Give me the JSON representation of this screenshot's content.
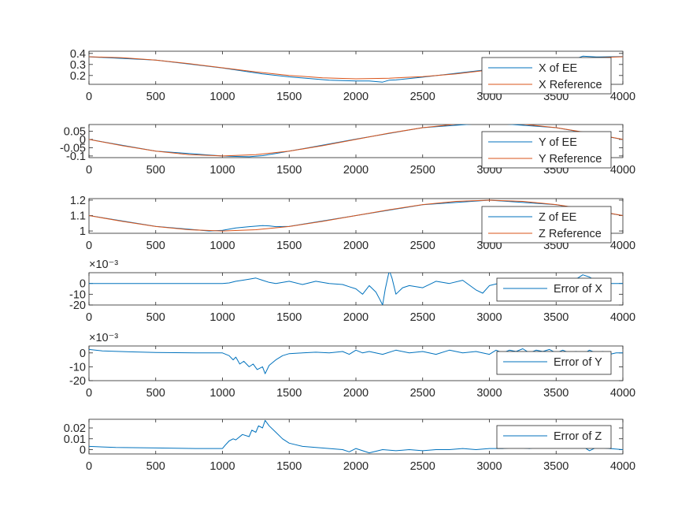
{
  "colors": {
    "ee": "#0072BD",
    "reference": "#D95319"
  },
  "chart_data": [
    {
      "type": "line",
      "xlim": [
        0,
        4000
      ],
      "ylim": [
        0.12,
        0.42
      ],
      "xticks": [
        0,
        500,
        1000,
        1500,
        2000,
        2500,
        3000,
        3500,
        4000
      ],
      "xtick_labels": [
        "0",
        "500",
        "1000",
        "1500",
        "2000",
        "2500",
        "3000",
        "3500",
        "4000"
      ],
      "yticks": [
        0.2,
        0.3,
        0.4
      ],
      "ytick_labels": [
        "0.2",
        "0.3",
        "0.4"
      ],
      "exponent_label": "",
      "legend_position": "bottom-right",
      "series": [
        {
          "name": "X of EE",
          "color_key": "ee",
          "x": [
            0,
            500,
            1000,
            1100,
            1200,
            1300,
            1500,
            1800,
            2000,
            2100,
            2200,
            2250,
            2300,
            2500,
            3000,
            3500,
            3650,
            3700,
            3800,
            4000
          ],
          "y": [
            0.369,
            0.34,
            0.268,
            0.25,
            0.232,
            0.215,
            0.188,
            0.158,
            0.15,
            0.15,
            0.14,
            0.158,
            0.16,
            0.185,
            0.255,
            0.33,
            0.352,
            0.375,
            0.368,
            0.372
          ]
        },
        {
          "name": "X Reference",
          "color_key": "reference",
          "x": [
            0,
            250,
            500,
            750,
            1000,
            1250,
            1500,
            1750,
            2000,
            2250,
            2500,
            2750,
            3000,
            3250,
            3500,
            3750,
            4000
          ],
          "y": [
            0.37,
            0.361,
            0.339,
            0.307,
            0.27,
            0.233,
            0.201,
            0.179,
            0.17,
            0.176,
            0.19,
            0.214,
            0.25,
            0.29,
            0.33,
            0.359,
            0.37
          ]
        }
      ]
    },
    {
      "type": "line",
      "xlim": [
        0,
        4000
      ],
      "ylim": [
        -0.11,
        0.09
      ],
      "xticks": [
        0,
        500,
        1000,
        1500,
        2000,
        2500,
        3000,
        3500,
        4000
      ],
      "xtick_labels": [
        "0",
        "500",
        "1000",
        "1500",
        "2000",
        "2500",
        "3000",
        "3500",
        "4000"
      ],
      "yticks": [
        -0.1,
        -0.05,
        0,
        0.05
      ],
      "ytick_labels": [
        "-0.1",
        "-0.05",
        "0",
        "0.05"
      ],
      "exponent_label": "",
      "legend_position": "bottom-right",
      "series": [
        {
          "name": "Y of EE",
          "color_key": "ee",
          "x": [
            0,
            500,
            1000,
            1100,
            1200,
            1300,
            1400,
            1500,
            2000,
            2500,
            3000,
            3500,
            4000
          ],
          "y": [
            0.0,
            -0.071,
            -0.1,
            -0.103,
            -0.105,
            -0.098,
            -0.085,
            -0.071,
            0.002,
            0.071,
            0.1,
            0.071,
            0.0
          ]
        },
        {
          "name": "Y Reference",
          "color_key": "reference",
          "x": [
            0,
            250,
            500,
            750,
            1000,
            1250,
            1500,
            1750,
            2000,
            2250,
            2500,
            2750,
            3000,
            3250,
            3500,
            3750,
            4000
          ],
          "y": [
            0.0,
            -0.038,
            -0.071,
            -0.092,
            -0.1,
            -0.092,
            -0.071,
            -0.038,
            0.0,
            0.038,
            0.071,
            0.092,
            0.1,
            0.092,
            0.071,
            0.038,
            0.0
          ]
        }
      ]
    },
    {
      "type": "line",
      "xlim": [
        0,
        4000
      ],
      "ylim": [
        0.985,
        1.21
      ],
      "xticks": [
        0,
        500,
        1000,
        1500,
        2000,
        2500,
        3000,
        3500,
        4000
      ],
      "xtick_labels": [
        "0",
        "500",
        "1000",
        "1500",
        "2000",
        "2500",
        "3000",
        "3500",
        "4000"
      ],
      "yticks": [
        1.0,
        1.1,
        1.2
      ],
      "ytick_labels": [
        "1",
        "1.1",
        "1.2"
      ],
      "exponent_label": "",
      "legend_position": "bottom-right",
      "series": [
        {
          "name": "Z of EE",
          "color_key": "ee",
          "x": [
            0,
            500,
            900,
            1000,
            1100,
            1200,
            1300,
            1350,
            1400,
            1500,
            2000,
            2500,
            3000,
            3500,
            4000
          ],
          "y": [
            1.1,
            1.03,
            1.0,
            1.004,
            1.02,
            1.028,
            1.035,
            1.033,
            1.028,
            1.03,
            1.1,
            1.17,
            1.2,
            1.17,
            1.1
          ]
        },
        {
          "name": "Z Reference",
          "color_key": "reference",
          "x": [
            0,
            250,
            500,
            750,
            1000,
            1250,
            1500,
            1750,
            2000,
            2250,
            2500,
            2750,
            3000,
            3250,
            3500,
            3750,
            4000
          ],
          "y": [
            1.1,
            1.062,
            1.029,
            1.008,
            1.0,
            1.008,
            1.029,
            1.062,
            1.1,
            1.138,
            1.171,
            1.192,
            1.2,
            1.192,
            1.171,
            1.138,
            1.1
          ]
        }
      ]
    },
    {
      "type": "line",
      "xlim": [
        0,
        4000
      ],
      "ylim": [
        -20,
        10
      ],
      "xticks": [
        0,
        500,
        1000,
        1500,
        2000,
        2500,
        3000,
        3500,
        4000
      ],
      "xtick_labels": [
        "0",
        "500",
        "1000",
        "1500",
        "2000",
        "2500",
        "3000",
        "3500",
        "4000"
      ],
      "yticks": [
        -20,
        -10,
        0
      ],
      "ytick_labels": [
        "-20",
        "-10",
        "0"
      ],
      "exponent_label": "×10⁻³",
      "legend_position": "right",
      "series": [
        {
          "name": "Error of X",
          "color_key": "ee",
          "x": [
            0,
            1000,
            1050,
            1100,
            1150,
            1200,
            1250,
            1300,
            1350,
            1400,
            1500,
            1600,
            1700,
            1800,
            1900,
            1950,
            2000,
            2030,
            2050,
            2100,
            2150,
            2180,
            2200,
            2220,
            2250,
            2270,
            2300,
            2350,
            2400,
            2500,
            2600,
            2700,
            2800,
            2900,
            2950,
            3000,
            3100,
            3200,
            3300,
            3400,
            3500,
            3600,
            3650,
            3700,
            3750,
            3800,
            3900,
            4000
          ],
          "y": [
            0,
            0,
            0.5,
            2.0,
            3.0,
            4.0,
            5.0,
            3.0,
            1.0,
            0.0,
            2.0,
            -1.0,
            2.0,
            0.0,
            -1.0,
            -3.0,
            -5.0,
            -8.0,
            -10.0,
            -2.0,
            -8.0,
            -15.0,
            -20.0,
            -5.0,
            12.0,
            5.0,
            -10.0,
            -4.0,
            -2.0,
            -4.0,
            2.0,
            0.0,
            3.0,
            -6.0,
            -9.0,
            -2.0,
            1.0,
            0.0,
            2.0,
            -1.0,
            1.0,
            0.0,
            4.0,
            8.0,
            6.0,
            2.0,
            0.0,
            0.0
          ]
        }
      ]
    },
    {
      "type": "line",
      "xlim": [
        0,
        4000
      ],
      "ylim": [
        -20,
        5
      ],
      "xticks": [
        0,
        500,
        1000,
        1500,
        2000,
        2500,
        3000,
        3500,
        4000
      ],
      "xtick_labels": [
        "0",
        "500",
        "1000",
        "1500",
        "2000",
        "2500",
        "3000",
        "3500",
        "4000"
      ],
      "yticks": [
        -20,
        -10,
        0
      ],
      "ytick_labels": [
        "-20",
        "-10",
        "0"
      ],
      "exponent_label": "×10⁻³",
      "legend_position": "right",
      "series": [
        {
          "name": "Error of Y",
          "color_key": "ee",
          "x": [
            0,
            100,
            300,
            500,
            800,
            1000,
            1050,
            1080,
            1100,
            1130,
            1160,
            1200,
            1230,
            1260,
            1300,
            1320,
            1350,
            1400,
            1450,
            1500,
            1600,
            1700,
            1800,
            1900,
            1950,
            2000,
            2050,
            2100,
            2200,
            2300,
            2400,
            2500,
            2600,
            2700,
            2800,
            2900,
            3000,
            3050,
            3100,
            3150,
            3200,
            3250,
            3300,
            3350,
            3400,
            3450,
            3500,
            3550,
            3600,
            3650,
            3700,
            3750,
            3800,
            3850,
            3900,
            3950,
            4000
          ],
          "y": [
            2.5,
            1.5,
            0.8,
            0.3,
            0.0,
            0.0,
            -2.0,
            -5.0,
            -3.0,
            -8.0,
            -6.0,
            -10.0,
            -8.0,
            -12.0,
            -10.0,
            -15.0,
            -9.0,
            -5.0,
            -2.0,
            -0.5,
            0.0,
            0.5,
            0.0,
            1.0,
            -1.0,
            2.0,
            0.0,
            1.0,
            -1.0,
            2.0,
            0.0,
            1.0,
            -1.0,
            2.0,
            0.0,
            1.0,
            -1.0,
            2.0,
            0.0,
            2.0,
            1.0,
            3.0,
            0.0,
            2.0,
            1.0,
            2.5,
            0.0,
            2.0,
            0.0,
            1.0,
            -1.0,
            2.0,
            0.0,
            1.0,
            -1.0,
            0.0,
            0.0
          ]
        }
      ]
    },
    {
      "type": "line",
      "xlim": [
        0,
        4000
      ],
      "ylim": [
        -0.004,
        0.028
      ],
      "xticks": [
        0,
        500,
        1000,
        1500,
        2000,
        2500,
        3000,
        3500,
        4000
      ],
      "xtick_labels": [
        "0",
        "500",
        "1000",
        "1500",
        "2000",
        "2500",
        "3000",
        "3500",
        "4000"
      ],
      "yticks": [
        0,
        0.01,
        0.02
      ],
      "ytick_labels": [
        "0",
        "0.01",
        "0.02"
      ],
      "exponent_label": "",
      "legend_position": "right",
      "series": [
        {
          "name": "Error of Z",
          "color_key": "ee",
          "x": [
            0,
            200,
            500,
            800,
            1000,
            1020,
            1050,
            1080,
            1100,
            1150,
            1200,
            1220,
            1250,
            1270,
            1300,
            1320,
            1350,
            1400,
            1450,
            1500,
            1600,
            1700,
            1800,
            1900,
            1950,
            2000,
            2050,
            2100,
            2200,
            2300,
            2400,
            2500,
            2600,
            2700,
            2800,
            2900,
            3000,
            3100,
            3200,
            3300,
            3400,
            3500,
            3600,
            3700,
            3750,
            3800,
            3900,
            4000
          ],
          "y": [
            0.003,
            0.002,
            0.0015,
            0.001,
            0.001,
            0.004,
            0.008,
            0.01,
            0.009,
            0.014,
            0.012,
            0.018,
            0.016,
            0.022,
            0.02,
            0.027,
            0.022,
            0.016,
            0.01,
            0.006,
            0.003,
            0.002,
            0.001,
            0.0,
            -0.002,
            0.001,
            -0.001,
            -0.003,
            0.0,
            -0.001,
            0.0,
            -0.001,
            0.0,
            0.0,
            0.001,
            0.0,
            0.001,
            0.001,
            0.002,
            0.001,
            0.003,
            0.002,
            0.004,
            0.003,
            -0.001,
            0.002,
            0.001,
            0.0
          ]
        }
      ]
    }
  ]
}
